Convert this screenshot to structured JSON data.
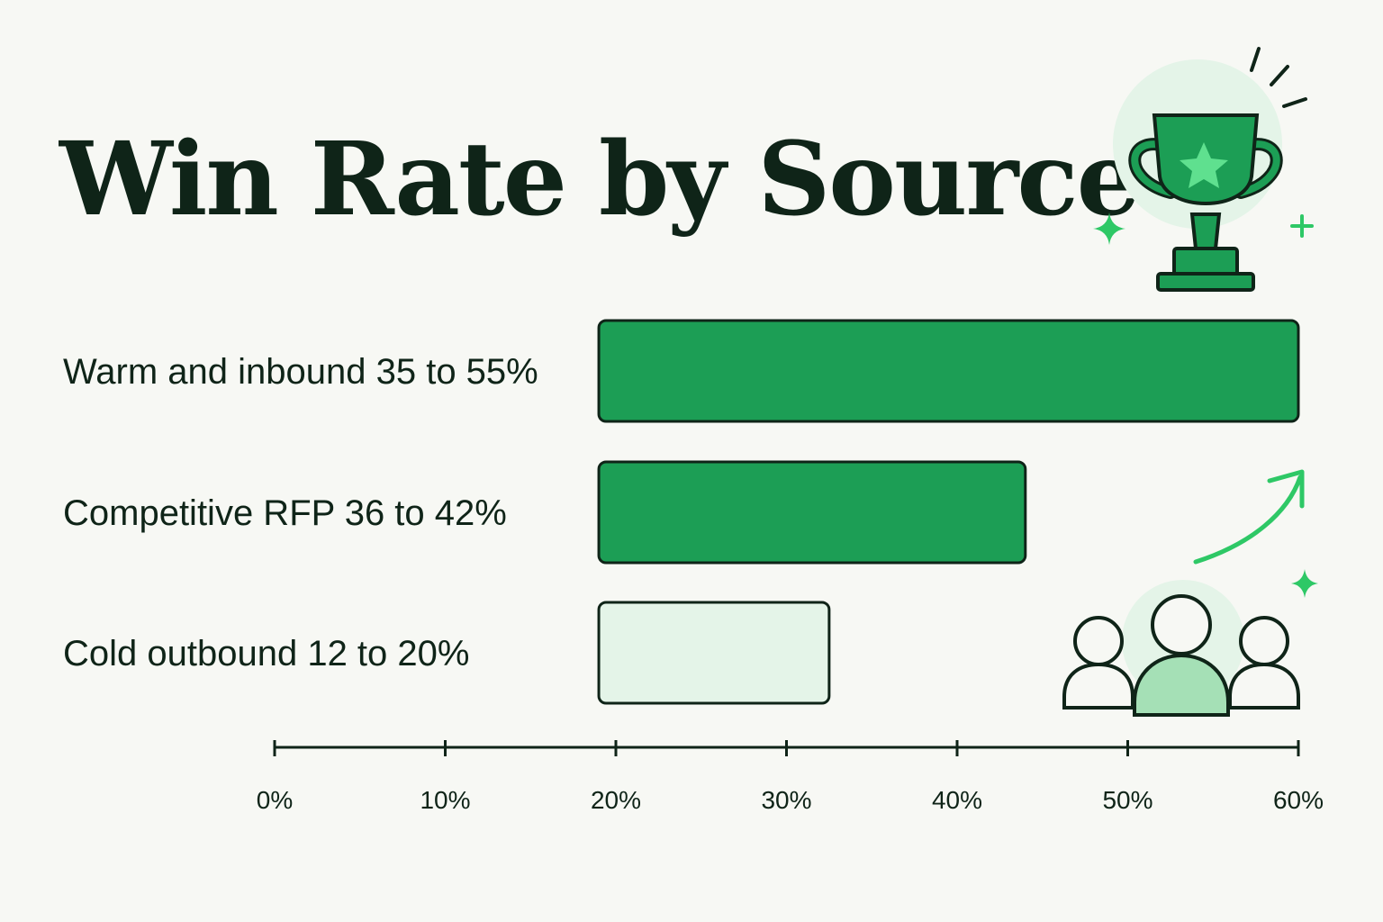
{
  "chart_data": {
    "type": "bar",
    "orientation": "horizontal",
    "title": "Win Rate by Source",
    "categories": [
      "Warm and inbound 35 to 55%",
      "Competitive RFP 36 to 42%",
      "Cold outbound 12 to 20%"
    ],
    "series": [
      {
        "ranges": [
          [
            19,
            60
          ],
          [
            19,
            44
          ],
          [
            19,
            32.5
          ]
        ]
      }
    ],
    "xlim": [
      0,
      60
    ],
    "xticks": [
      "0%",
      "10%",
      "20%",
      "30%",
      "40%",
      "50%",
      "60%"
    ],
    "tick_values": [
      0,
      10,
      20,
      30,
      40,
      50,
      60
    ],
    "grid": false,
    "legend": "none"
  },
  "colors": {
    "background": "#f7f8f4",
    "ink": "#0f2418",
    "bar_strong": "#1c9e55",
    "bar_light": "#e4f4e8",
    "accent": "#2ec866",
    "accent_soft": "#dff3e4",
    "accent_mid": "#a5e0b6"
  },
  "icons": [
    "trophy-icon",
    "star-icon",
    "sparkle-icon",
    "trend-arrow-icon",
    "team-icon"
  ]
}
